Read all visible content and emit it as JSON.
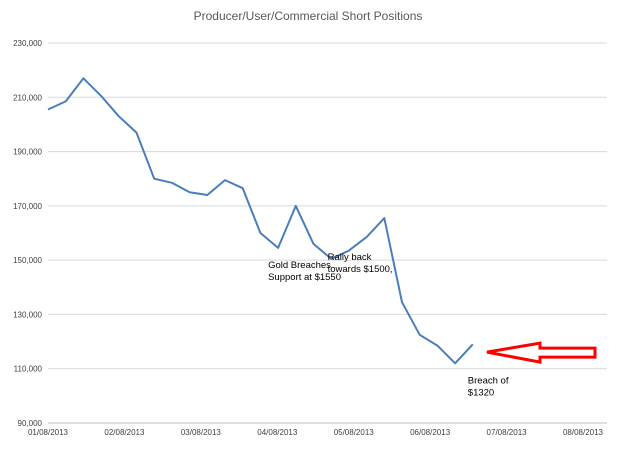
{
  "chart_data": {
    "type": "line",
    "title": "Producer/User/Commercial Short Positions",
    "xlabel": "",
    "ylabel": "",
    "x_tick_labels": [
      "01/08/2013",
      "02/08/2013",
      "03/08/2013",
      "04/08/2013",
      "05/08/2013",
      "06/08/2013",
      "07/08/2013",
      "08/08/2013"
    ],
    "y_tick_labels": [
      "90,000",
      "110,000",
      "130,000",
      "150,000",
      "170,000",
      "190,000",
      "210,000",
      "230,000"
    ],
    "y_ticks": [
      90000,
      110000,
      130000,
      150000,
      170000,
      190000,
      210000,
      230000
    ],
    "ylim": [
      90000,
      230000
    ],
    "grid": true,
    "legend": "none",
    "series": [
      {
        "color": "#4a7ebb",
        "values": [
          205500,
          208500,
          217000,
          210500,
          203000,
          197000,
          180000,
          178500,
          175000,
          174000,
          179500,
          176500,
          160000,
          154500,
          170000,
          156000,
          150500,
          153500,
          158500,
          165500,
          134500,
          122500,
          118500,
          112000,
          119000
        ]
      }
    ],
    "annotations": [
      {
        "index": 13,
        "lines": [
          "Gold Breaches",
          "Support at $1550"
        ]
      },
      {
        "index": 18,
        "lines": [
          "Rally back",
          "towards $1500,"
        ]
      },
      {
        "index": 24,
        "lines": [
          "Breach of",
          "$1320"
        ]
      }
    ],
    "arrow": {
      "color": "#ff0000",
      "direction": "left",
      "at_value": 115000
    }
  }
}
